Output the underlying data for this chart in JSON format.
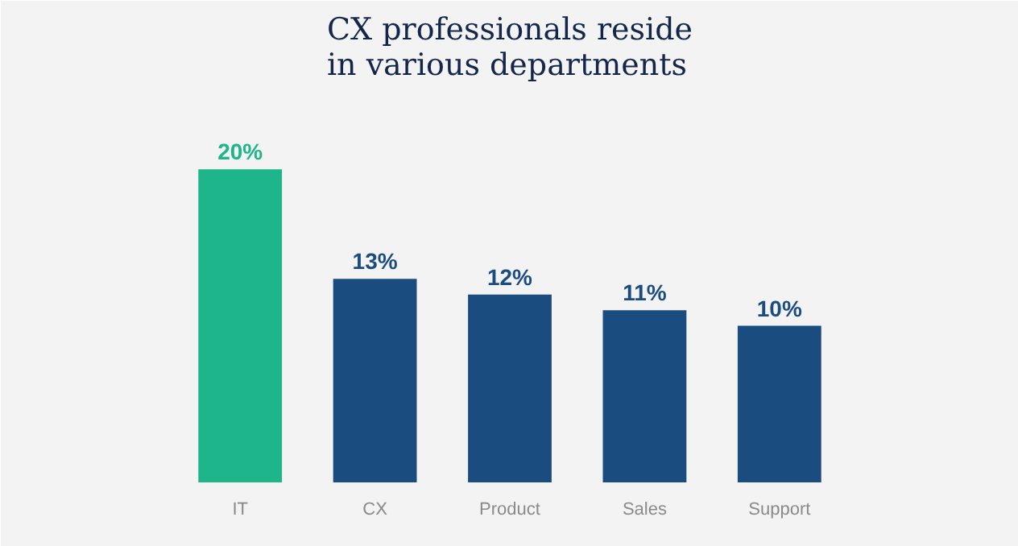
{
  "chart_data": {
    "type": "bar",
    "title": "CX professionals reside\nin various departments",
    "categories": [
      "IT",
      "CX",
      "Product",
      "Sales",
      "Support"
    ],
    "values": [
      20,
      13,
      12,
      11,
      10
    ],
    "colors": [
      "#1db589",
      "#1b4c80",
      "#1b4c80",
      "#1b4c80",
      "#1b4c80"
    ],
    "data_labels": true,
    "value_labels": [
      "20%",
      "13%",
      "12%",
      "11%",
      "10%"
    ],
    "grid": false
  }
}
